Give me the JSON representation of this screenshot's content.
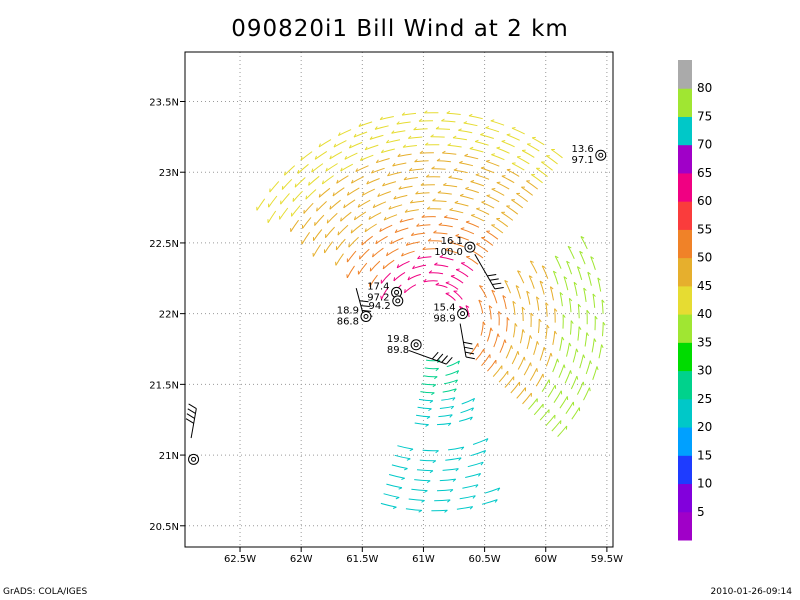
{
  "title": "090820i1 Bill Wind at 2 km",
  "footer": {
    "left": "GrADS: COLA/IGES",
    "right": "2010-01-26-09:14"
  },
  "map": {
    "lon_range": [
      -62.95,
      -59.45
    ],
    "lat_range": [
      20.35,
      23.85
    ],
    "lon_ticks": [
      {
        "value": -62.5,
        "label": "62.5W"
      },
      {
        "value": -62.0,
        "label": "62W"
      },
      {
        "value": -61.5,
        "label": "61.5W"
      },
      {
        "value": -61.0,
        "label": "61W"
      },
      {
        "value": -60.5,
        "label": "60.5W"
      },
      {
        "value": -60.0,
        "label": "60W"
      },
      {
        "value": -59.5,
        "label": "59.5W"
      }
    ],
    "lat_ticks": [
      {
        "value": 20.5,
        "label": "20.5N"
      },
      {
        "value": 21.0,
        "label": "21N"
      },
      {
        "value": 21.5,
        "label": "21.5N"
      },
      {
        "value": 22.0,
        "label": "22N"
      },
      {
        "value": 22.5,
        "label": "22.5N"
      },
      {
        "value": 23.0,
        "label": "23N"
      },
      {
        "value": 23.5,
        "label": "23.5N"
      }
    ],
    "grid": true,
    "colorbar": {
      "labels": [
        5,
        10,
        15,
        20,
        25,
        30,
        35,
        40,
        45,
        50,
        55,
        60,
        65,
        70,
        75,
        80
      ],
      "colors": [
        "#a000c8",
        "#8200dc",
        "#1e3cff",
        "#00a0ff",
        "#00c8c8",
        "#00d28c",
        "#00dc00",
        "#a0e632",
        "#e6dc32",
        "#e6af2d",
        "#f08228",
        "#fa3c3c",
        "#f00082",
        "#a000c8",
        "#00c8c8",
        "#a0e632",
        "#aaaaaa"
      ]
    },
    "observations": [
      {
        "lon": -59.55,
        "lat": 23.12,
        "top": "13.6",
        "bottom": "97.1"
      },
      {
        "lon": -60.62,
        "lat": 22.47,
        "top": "16.1",
        "bottom": "100.0"
      },
      {
        "lon": -61.22,
        "lat": 22.15,
        "top": "17.4",
        "bottom": "97.2"
      },
      {
        "lon": -61.21,
        "lat": 22.09,
        "top": "",
        "bottom": "94.2"
      },
      {
        "lon": -61.47,
        "lat": 21.98,
        "top": "18.9",
        "bottom": "86.8"
      },
      {
        "lon": -60.68,
        "lat": 22.0,
        "top": "15.4",
        "bottom": "98.9"
      },
      {
        "lon": -61.06,
        "lat": 21.78,
        "top": "19.8",
        "bottom": "89.8"
      },
      {
        "lon": -62.88,
        "lat": 20.97,
        "top": "",
        "bottom": ""
      }
    ]
  }
}
